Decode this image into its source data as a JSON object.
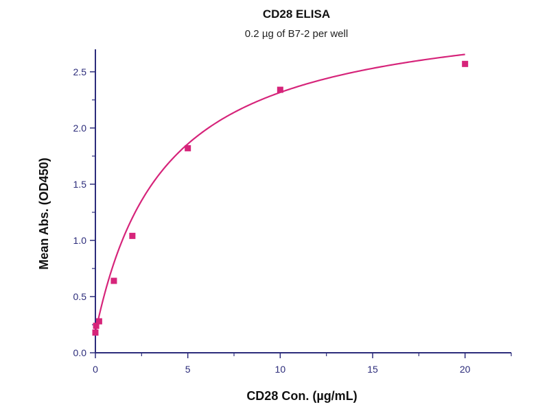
{
  "chart_data": {
    "type": "scatter",
    "title": "CD28 ELISA",
    "subtitle": "0.2 µg of B7-2 per well",
    "xlabel": "CD28 Con. (µg/mL)",
    "ylabel": "Mean Abs. (OD450)",
    "xlim": [
      0,
      22.5
    ],
    "ylim": [
      0,
      2.7
    ],
    "x_ticks": [
      "0",
      "5",
      "10",
      "15",
      "20"
    ],
    "y_ticks": [
      "0.0",
      "0.5",
      "1.0",
      "1.5",
      "2.0",
      "2.5"
    ],
    "grid": false,
    "legend": "none",
    "series": [
      {
        "points": [
          {
            "x": 0.0,
            "y": 0.18
          },
          {
            "x": 0.04,
            "y": 0.24
          },
          {
            "x": 0.2,
            "y": 0.28
          },
          {
            "x": 1.0,
            "y": 0.64
          },
          {
            "x": 2.0,
            "y": 1.04
          },
          {
            "x": 5.0,
            "y": 1.82
          },
          {
            "x": 10.0,
            "y": 2.34
          },
          {
            "x": 20.0,
            "y": 2.57
          }
        ],
        "fit": {
          "type": "saturation",
          "baseline": 0.18,
          "bmax": 2.94,
          "kd": 3.76
        }
      }
    ],
    "colors": {
      "data": "#d6247a",
      "axis": "#2b2b7a"
    }
  }
}
